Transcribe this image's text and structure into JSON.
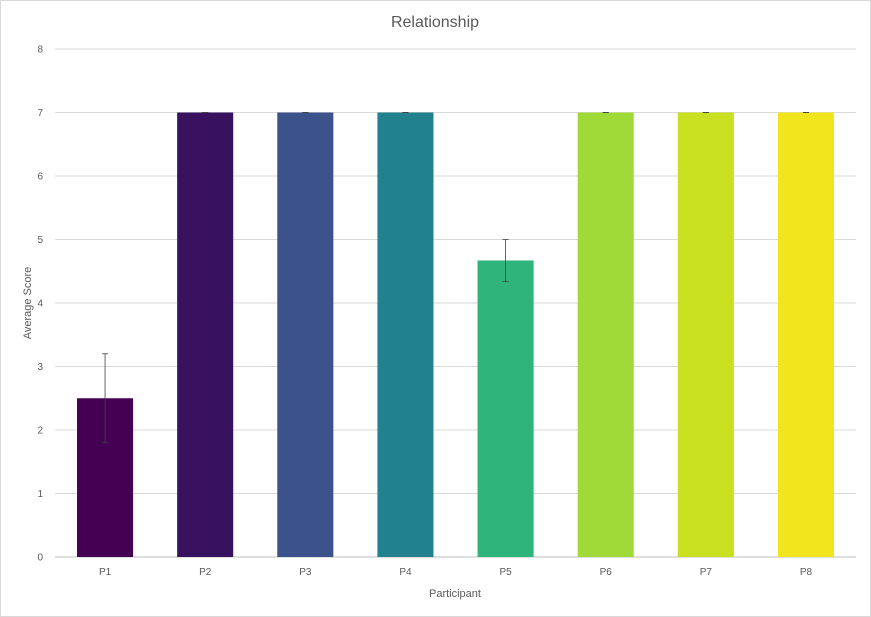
{
  "chart_data": {
    "type": "bar",
    "title": "Relationship",
    "xlabel": "Participant",
    "ylabel": "Average Score",
    "categories": [
      "P1",
      "P2",
      "P3",
      "P4",
      "P5",
      "P6",
      "P7",
      "P8"
    ],
    "values": [
      2.5,
      7,
      7,
      7,
      4.67,
      7,
      7,
      7
    ],
    "error_bars": [
      0.7,
      0,
      0,
      0,
      0.33,
      0,
      0,
      0
    ],
    "colors": [
      "#440154",
      "#39125f",
      "#3b528b",
      "#21818c",
      "#2fb47c",
      "#a0da39",
      "#c8e020",
      "#f1e51d"
    ],
    "ylim": [
      0,
      8
    ],
    "yticks": [
      "0",
      "1",
      "2",
      "3",
      "4",
      "5",
      "6",
      "7",
      "8"
    ],
    "grid": true,
    "legend": "none"
  }
}
